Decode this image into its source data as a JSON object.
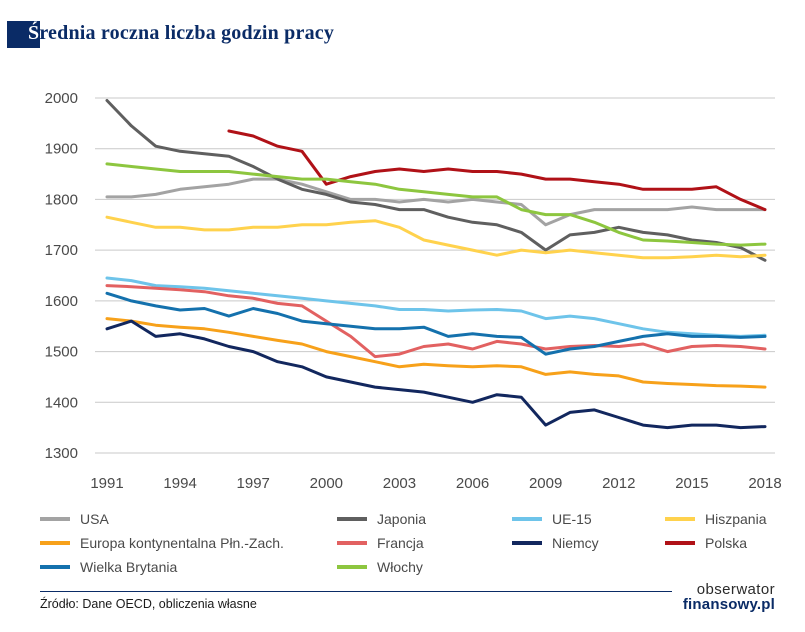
{
  "header": {
    "title_first": "Ś",
    "title_rest": "rednia roczna liczba godzin pracy"
  },
  "colors": {
    "accent_navy": "#0a2b66",
    "grid": "#c9c9c9",
    "axis_text": "#4a4a4a"
  },
  "chart_data": {
    "type": "line",
    "title": "Średnia roczna liczba godzin pracy",
    "xlabel": "",
    "ylabel": "",
    "grid": true,
    "legend_position": "bottom",
    "ylim": [
      1300,
      2000
    ],
    "ytick_step": 100,
    "x": [
      1991,
      1992,
      1993,
      1994,
      1995,
      1996,
      1997,
      1998,
      1999,
      2000,
      2001,
      2002,
      2003,
      2004,
      2005,
      2006,
      2007,
      2008,
      2009,
      2010,
      2011,
      2012,
      2013,
      2014,
      2015,
      2016,
      2017,
      2018
    ],
    "xticks": [
      1991,
      1994,
      1997,
      2000,
      2003,
      2006,
      2009,
      2012,
      2015,
      2018
    ],
    "series": [
      {
        "id": "usa",
        "name": "USA",
        "color": "#a3a3a3",
        "values": [
          1805,
          1805,
          1810,
          1820,
          1825,
          1830,
          1840,
          1840,
          1830,
          1815,
          1800,
          1800,
          1795,
          1800,
          1795,
          1800,
          1795,
          1790,
          1750,
          1770,
          1780,
          1780,
          1780,
          1780,
          1785,
          1780,
          1780,
          1780
        ]
      },
      {
        "id": "japonia",
        "name": "Japonia",
        "color": "#5f5f5f",
        "values": [
          1995,
          1945,
          1905,
          1895,
          1890,
          1885,
          1865,
          1840,
          1820,
          1810,
          1795,
          1790,
          1780,
          1780,
          1765,
          1755,
          1750,
          1735,
          1700,
          1730,
          1735,
          1745,
          1735,
          1730,
          1720,
          1715,
          1705,
          1680
        ]
      },
      {
        "id": "ue-15",
        "name": "UE-15",
        "color": "#6ec4ea",
        "values": [
          1645,
          1640,
          1630,
          1628,
          1625,
          1620,
          1615,
          1610,
          1605,
          1600,
          1595,
          1590,
          1583,
          1583,
          1580,
          1582,
          1583,
          1580,
          1565,
          1570,
          1565,
          1555,
          1545,
          1538,
          1535,
          1532,
          1530,
          1532
        ]
      },
      {
        "id": "hiszpania",
        "name": "Hiszpania",
        "color": "#ffd24d",
        "values": [
          1765,
          1755,
          1745,
          1745,
          1740,
          1740,
          1745,
          1745,
          1750,
          1750,
          1755,
          1758,
          1745,
          1720,
          1710,
          1700,
          1690,
          1700,
          1695,
          1700,
          1695,
          1690,
          1685,
          1685,
          1687,
          1690,
          1687,
          1690
        ]
      },
      {
        "id": "europa-kontynentalna",
        "name": "Europa kontynentalna Płn.-Zach.",
        "color": "#f7a11a",
        "values": [
          1565,
          1560,
          1552,
          1548,
          1545,
          1538,
          1530,
          1522,
          1515,
          1500,
          1490,
          1480,
          1470,
          1475,
          1472,
          1470,
          1472,
          1470,
          1455,
          1460,
          1455,
          1452,
          1440,
          1437,
          1435,
          1433,
          1432,
          1430
        ]
      },
      {
        "id": "francja",
        "name": "Francja",
        "color": "#e26161",
        "values": [
          1630,
          1628,
          1625,
          1622,
          1618,
          1610,
          1605,
          1595,
          1590,
          1560,
          1530,
          1490,
          1495,
          1510,
          1515,
          1505,
          1520,
          1515,
          1505,
          1510,
          1512,
          1510,
          1515,
          1500,
          1510,
          1512,
          1510,
          1505
        ]
      },
      {
        "id": "niemcy",
        "name": "Niemcy",
        "color": "#12275e",
        "values": [
          1545,
          1560,
          1530,
          1535,
          1525,
          1510,
          1500,
          1480,
          1470,
          1450,
          1440,
          1430,
          1425,
          1420,
          1410,
          1400,
          1415,
          1410,
          1355,
          1380,
          1385,
          1370,
          1355,
          1350,
          1355,
          1355,
          1350,
          1352
        ]
      },
      {
        "id": "polska",
        "name": "Polska",
        "color": "#b01117",
        "values": [
          null,
          null,
          null,
          null,
          null,
          1935,
          1925,
          1905,
          1895,
          1830,
          1845,
          1855,
          1860,
          1855,
          1860,
          1855,
          1855,
          1850,
          1840,
          1840,
          1835,
          1830,
          1820,
          1820,
          1820,
          1825,
          1800,
          1780
        ]
      },
      {
        "id": "wielka-brytania",
        "name": "Wielka Brytania",
        "color": "#1471ad",
        "values": [
          1615,
          1600,
          1590,
          1582,
          1585,
          1570,
          1585,
          1575,
          1560,
          1555,
          1550,
          1545,
          1545,
          1548,
          1530,
          1535,
          1530,
          1528,
          1495,
          1505,
          1510,
          1520,
          1530,
          1535,
          1530,
          1530,
          1528,
          1530
        ]
      },
      {
        "id": "wlochy",
        "name": "Włochy",
        "color": "#8dc63f",
        "values": [
          1870,
          1865,
          1860,
          1855,
          1855,
          1855,
          1850,
          1845,
          1840,
          1840,
          1835,
          1830,
          1820,
          1815,
          1810,
          1805,
          1805,
          1780,
          1770,
          1770,
          1755,
          1735,
          1720,
          1718,
          1715,
          1712,
          1710,
          1712
        ]
      }
    ]
  },
  "footer": {
    "source": "Źródło: Dane OECD, obliczenia własne",
    "logo_line1": "obserwator",
    "logo_line2": "finansowy.pl"
  }
}
